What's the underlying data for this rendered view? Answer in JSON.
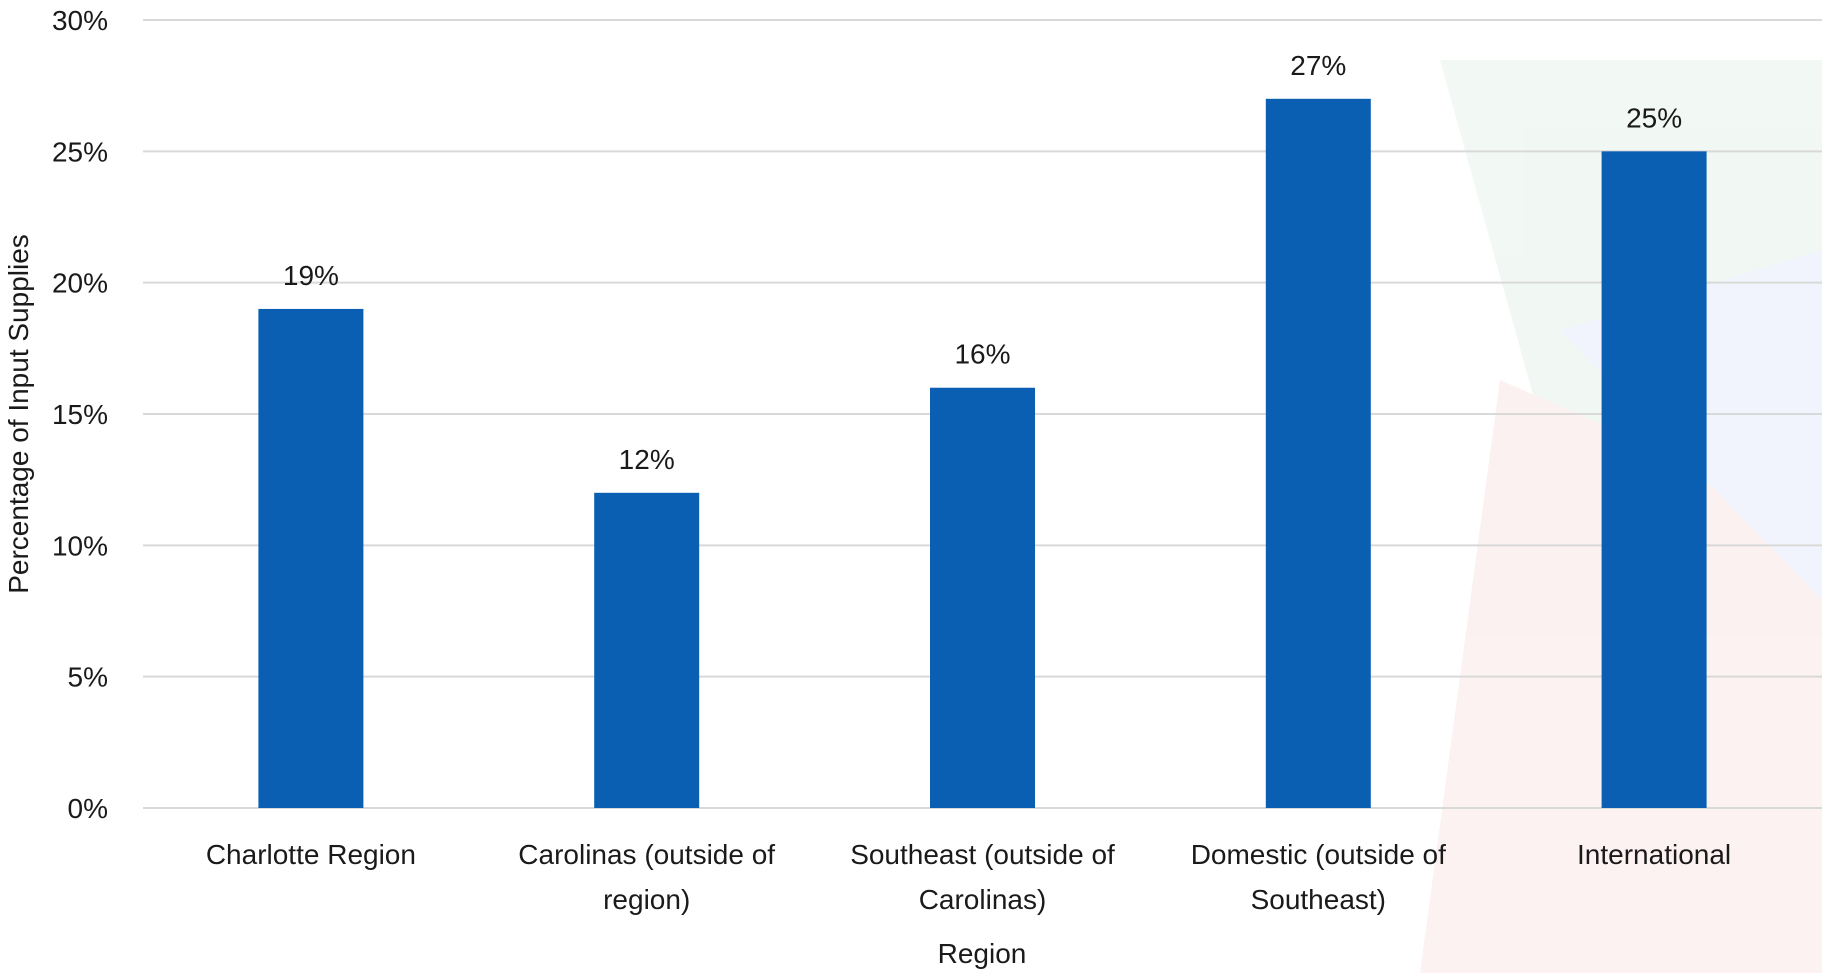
{
  "chart_data": {
    "type": "bar",
    "categories": [
      [
        "Charlotte Region"
      ],
      [
        "Carolinas (outside of",
        "region)"
      ],
      [
        "Southeast (outside of",
        "Carolinas)"
      ],
      [
        "Domestic (outside of",
        "Southeast)"
      ],
      [
        "International"
      ]
    ],
    "values": [
      19,
      12,
      16,
      27,
      25
    ],
    "data_labels": [
      "19%",
      "12%",
      "16%",
      "27%",
      "25%"
    ],
    "bar_color": "#0b5fb3",
    "xlabel": "Region",
    "ylabel": "Percentage of Input Supplies",
    "ylim": [
      0,
      30
    ],
    "yticks": [
      {
        "value": 0,
        "label": "0%"
      },
      {
        "value": 5,
        "label": "5%"
      },
      {
        "value": 10,
        "label": "10%"
      },
      {
        "value": 15,
        "label": "15%"
      },
      {
        "value": 20,
        "label": "20%"
      },
      {
        "value": 25,
        "label": "25%"
      },
      {
        "value": 30,
        "label": "30%"
      }
    ],
    "grid": true,
    "legend": "none"
  }
}
